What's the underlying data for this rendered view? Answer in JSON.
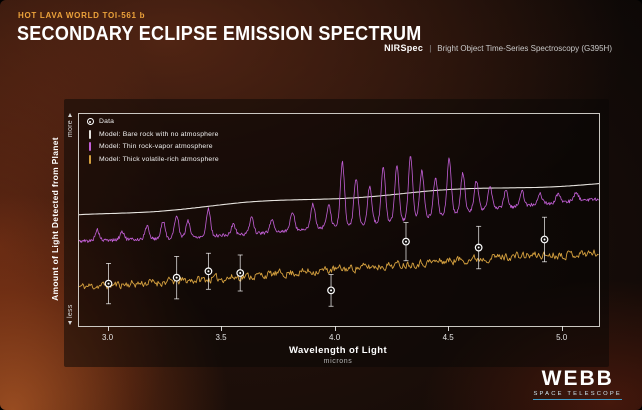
{
  "header": {
    "eyebrow": "HOT LAVA WORLD TOI-561 b",
    "title": "SECONDARY ECLIPSE EMISSION SPECTRUM",
    "instrument": "NIRSpec",
    "divider": "|",
    "mode": "Bright Object Time-Series Spectroscopy (G395H)"
  },
  "logo": {
    "name": "WEBB",
    "sub": "SPACE TELESCOPE"
  },
  "chart_data": {
    "type": "line",
    "title": "Secondary Eclipse Emission Spectrum of TOI-561 b",
    "xlabel": "Wavelength of Light",
    "xlabel_sub": "microns",
    "ylabel": "Amount of Light Detected from Planet",
    "y_more": "more",
    "y_less": "less",
    "x_range": [
      2.87,
      5.16
    ],
    "x_ticks": [
      "3.0",
      "3.5",
      "4.0",
      "4.5",
      "5.0"
    ],
    "y_range": [
      0,
      1
    ],
    "grid": false,
    "legend_position": "top-left",
    "legend": [
      {
        "label": "Data",
        "marker": "circle",
        "color": "#ffffff"
      },
      {
        "label": "Model: Bare rock with no atmosphere",
        "marker": "line",
        "color": "#e6e3de"
      },
      {
        "label": "Model: Thin rock-vapor atmosphere",
        "marker": "line",
        "color": "#c25fd6"
      },
      {
        "label": "Model: Thick volatile-rich atmosphere",
        "marker": "line",
        "color": "#d39f3e"
      }
    ],
    "data_points": [
      {
        "x": 3.0,
        "y": 0.2,
        "err": 0.095
      },
      {
        "x": 3.3,
        "y": 0.228,
        "err": 0.1
      },
      {
        "x": 3.44,
        "y": 0.258,
        "err": 0.085
      },
      {
        "x": 3.58,
        "y": 0.25,
        "err": 0.085
      },
      {
        "x": 3.98,
        "y": 0.168,
        "err": 0.075
      },
      {
        "x": 4.31,
        "y": 0.398,
        "err": 0.09
      },
      {
        "x": 4.63,
        "y": 0.37,
        "err": 0.1
      },
      {
        "x": 4.92,
        "y": 0.408,
        "err": 0.105
      }
    ],
    "models": {
      "bare_rock": {
        "name": "Model: Bare rock with no atmosphere",
        "color": "#e6e3de",
        "anchors": [
          [
            2.87,
            0.52
          ],
          [
            3.2,
            0.545
          ],
          [
            3.6,
            0.578
          ],
          [
            4.0,
            0.605
          ],
          [
            4.4,
            0.632
          ],
          [
            4.8,
            0.655
          ],
          [
            5.16,
            0.672
          ]
        ],
        "wiggle_amp": 0.006
      },
      "rock_vapor": {
        "name": "Model: Thin rock-vapor atmosphere",
        "color": "#c25fd6",
        "baseline": [
          [
            2.87,
            0.4
          ],
          [
            3.3,
            0.415
          ],
          [
            3.7,
            0.44
          ],
          [
            4.0,
            0.47
          ],
          [
            4.3,
            0.5
          ],
          [
            4.6,
            0.545
          ],
          [
            4.9,
            0.575
          ],
          [
            5.16,
            0.6
          ]
        ],
        "noise_amp": 0.008,
        "spike_width": 0.009,
        "spikes": [
          [
            2.95,
            0.05
          ],
          [
            3.06,
            0.04
          ],
          [
            3.17,
            0.06
          ],
          [
            3.24,
            0.08
          ],
          [
            3.3,
            0.11
          ],
          [
            3.35,
            0.08
          ],
          [
            3.44,
            0.13
          ],
          [
            3.55,
            0.05
          ],
          [
            3.63,
            0.08
          ],
          [
            3.72,
            0.06
          ],
          [
            3.81,
            0.09
          ],
          [
            3.9,
            0.12
          ],
          [
            3.97,
            0.1
          ],
          [
            4.03,
            0.3
          ],
          [
            4.09,
            0.22
          ],
          [
            4.15,
            0.17
          ],
          [
            4.21,
            0.26
          ],
          [
            4.27,
            0.26
          ],
          [
            4.33,
            0.3
          ],
          [
            4.38,
            0.22
          ],
          [
            4.44,
            0.18
          ],
          [
            4.5,
            0.26
          ],
          [
            4.56,
            0.18
          ],
          [
            4.62,
            0.14
          ],
          [
            4.68,
            0.11
          ],
          [
            4.75,
            0.08
          ],
          [
            4.82,
            0.07
          ],
          [
            4.9,
            0.05
          ],
          [
            4.98,
            0.04
          ],
          [
            5.06,
            0.04
          ]
        ]
      },
      "volatile_rich": {
        "name": "Model: Thick volatile-rich atmosphere",
        "color": "#d39f3e",
        "baseline": [
          [
            2.87,
            0.185
          ],
          [
            3.2,
            0.205
          ],
          [
            3.5,
            0.225
          ],
          [
            3.8,
            0.25
          ],
          [
            4.1,
            0.275
          ],
          [
            4.4,
            0.3
          ],
          [
            4.7,
            0.325
          ],
          [
            5.16,
            0.345
          ]
        ],
        "noise_amp": 0.03,
        "noise_seed": 11
      }
    }
  }
}
